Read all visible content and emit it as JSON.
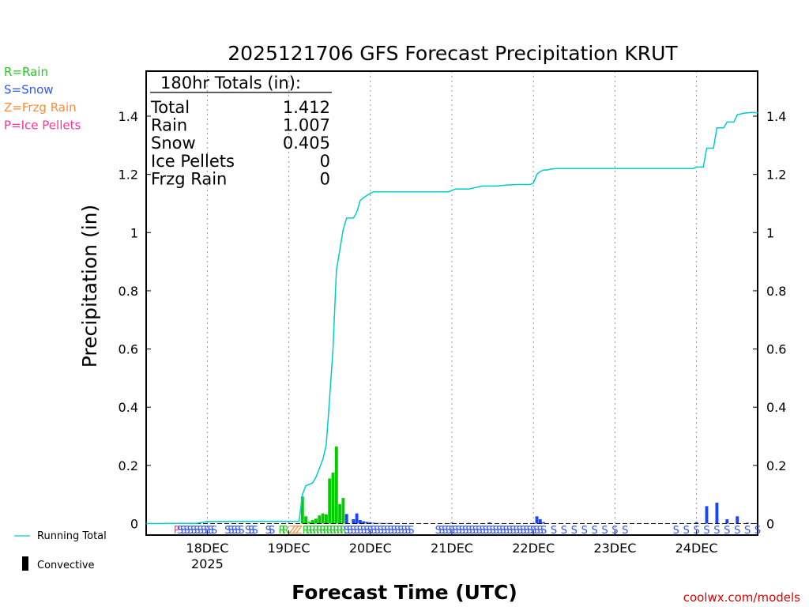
{
  "chart_data": {
    "type": "bar",
    "title": "2025121706 GFS Forecast Precipitation KRUT",
    "ylabel": "Precipitation (in)",
    "xlabel": "Forecast Time (UTC)",
    "credit": "coolwx.com/models",
    "ylim": [
      -0.04,
      1.56
    ],
    "yticks": [
      0,
      0.2,
      0.4,
      0.6,
      0.8,
      1,
      1.2,
      1.4
    ],
    "ytick_labels": [
      "0",
      "0.2",
      "0.4",
      "0.6",
      "0.8",
      "1",
      "1.2",
      "1.4"
    ],
    "xlim_hours": [
      0,
      180
    ],
    "xticks": [
      {
        "hour": 18,
        "label": "18DEC",
        "sublabel": "2025"
      },
      {
        "hour": 42,
        "label": "19DEC",
        "sublabel": ""
      },
      {
        "hour": 66,
        "label": "20DEC",
        "sublabel": ""
      },
      {
        "hour": 90,
        "label": "21DEC",
        "sublabel": ""
      },
      {
        "hour": 114,
        "label": "22DEC",
        "sublabel": ""
      },
      {
        "hour": 138,
        "label": "23DEC",
        "sublabel": ""
      },
      {
        "hour": 162,
        "label": "24DEC",
        "sublabel": ""
      }
    ],
    "legend_types": [
      {
        "label": "R=Rain",
        "color": "#22cc22"
      },
      {
        "label": "S=Snow",
        "color": "#3355ff"
      },
      {
        "label": "Z=Frzg Rain",
        "color": "#ff8c33"
      },
      {
        "label": "P=Ice Pellets",
        "color": "#ff3399"
      }
    ],
    "legend_series": [
      {
        "label": "Running Total",
        "color": "#00cccc"
      },
      {
        "label": "Convective",
        "color": "#000000"
      }
    ],
    "totals": {
      "heading": "180hr Totals (in):",
      "rows": [
        {
          "label": "Total",
          "value": "1.412"
        },
        {
          "label": "Rain",
          "value": "1.007"
        },
        {
          "label": "Snow",
          "value": "0.405"
        },
        {
          "label": "Ice Pellets",
          "value": "0"
        },
        {
          "label": "Frzg Rain",
          "value": "0"
        }
      ]
    },
    "series": [
      {
        "name": "Running Total",
        "color": "#00cccc",
        "points": [
          [
            0,
            0
          ],
          [
            15,
            0.001
          ],
          [
            18,
            0.007
          ],
          [
            30,
            0.008
          ],
          [
            42,
            0.008
          ],
          [
            45,
            0.008
          ],
          [
            46,
            0.1
          ],
          [
            47,
            0.13
          ],
          [
            48,
            0.135
          ],
          [
            49,
            0.14
          ],
          [
            50,
            0.16
          ],
          [
            51,
            0.19
          ],
          [
            52,
            0.22
          ],
          [
            53,
            0.27
          ],
          [
            54,
            0.43
          ],
          [
            55,
            0.6
          ],
          [
            56,
            0.87
          ],
          [
            57,
            0.94
          ],
          [
            58,
            1.01
          ],
          [
            59,
            1.05
          ],
          [
            61,
            1.05
          ],
          [
            62,
            1.07
          ],
          [
            63,
            1.11
          ],
          [
            64,
            1.12
          ],
          [
            66,
            1.135
          ],
          [
            67,
            1.14
          ],
          [
            70,
            1.14
          ],
          [
            80,
            1.14
          ],
          [
            87,
            1.14
          ],
          [
            89,
            1.14
          ],
          [
            90,
            1.145
          ],
          [
            91,
            1.15
          ],
          [
            95,
            1.15
          ],
          [
            97,
            1.155
          ],
          [
            99,
            1.16
          ],
          [
            103,
            1.16
          ],
          [
            106,
            1.163
          ],
          [
            109,
            1.165
          ],
          [
            113,
            1.165
          ],
          [
            114,
            1.17
          ],
          [
            115,
            1.2
          ],
          [
            116,
            1.21
          ],
          [
            117,
            1.215
          ],
          [
            118,
            1.215
          ],
          [
            119,
            1.218
          ],
          [
            121,
            1.22
          ],
          [
            130,
            1.22
          ],
          [
            150,
            1.22
          ],
          [
            161,
            1.22
          ],
          [
            162,
            1.225
          ],
          [
            164,
            1.225
          ],
          [
            165,
            1.29
          ],
          [
            167,
            1.29
          ],
          [
            168,
            1.36
          ],
          [
            170,
            1.36
          ],
          [
            171,
            1.38
          ],
          [
            173,
            1.38
          ],
          [
            174,
            1.405
          ],
          [
            176,
            1.41
          ],
          [
            178,
            1.413
          ],
          [
            180,
            1.412
          ]
        ]
      },
      {
        "name": "Rain",
        "color": "#00cc00",
        "bars": [
          [
            46,
            0.093
          ],
          [
            47,
            0.025
          ],
          [
            48,
            0.006
          ],
          [
            49,
            0.012
          ],
          [
            50,
            0.017
          ],
          [
            51,
            0.028
          ],
          [
            52,
            0.035
          ],
          [
            53,
            0.032
          ],
          [
            54,
            0.155
          ],
          [
            55,
            0.175
          ],
          [
            56,
            0.265
          ],
          [
            57,
            0.067
          ],
          [
            58,
            0.088
          ]
        ]
      },
      {
        "name": "Snow",
        "color": "#1a44ff",
        "bars": [
          [
            59,
            0.033
          ],
          [
            61,
            0.015
          ],
          [
            62,
            0.035
          ],
          [
            63,
            0.012
          ],
          [
            64,
            0.008
          ],
          [
            65,
            0.006
          ],
          [
            66,
            0.004
          ],
          [
            67,
            0.003
          ],
          [
            68,
            0.002
          ],
          [
            69,
            0.002
          ],
          [
            70,
            0.002
          ],
          [
            71,
            0.002
          ],
          [
            72,
            0.002
          ],
          [
            90,
            0.003
          ],
          [
            95,
            0.002
          ],
          [
            101,
            0.004
          ],
          [
            115,
            0.025
          ],
          [
            116,
            0.015
          ],
          [
            117,
            0.005
          ],
          [
            162,
            0.005
          ],
          [
            165,
            0.06
          ],
          [
            168,
            0.072
          ],
          [
            171,
            0.015
          ],
          [
            174,
            0.025
          ],
          [
            177,
            0.003
          ]
        ]
      }
    ],
    "ptype_marks": [
      {
        "symbol": "P",
        "color": "#ff3399",
        "hours": [
          9
        ]
      },
      {
        "symbol": "S",
        "color": "#3355ff",
        "hours": [
          10,
          11,
          12,
          13,
          14,
          15,
          16,
          17,
          18,
          19,
          20,
          24,
          25,
          26,
          27,
          28,
          30,
          31,
          32,
          36,
          37
        ]
      },
      {
        "symbol": "R",
        "color": "#22cc22",
        "hours": [
          40,
          41,
          47,
          48,
          49,
          50,
          51,
          52,
          53,
          54,
          55,
          56,
          57,
          58
        ]
      },
      {
        "symbol": "Z",
        "color": "#ff8c33",
        "hours": [
          43,
          44,
          45
        ]
      },
      {
        "symbol": "S",
        "color": "#3355ff",
        "hours": [
          59,
          60,
          61,
          62,
          63,
          64,
          65,
          66,
          67,
          68,
          69,
          70,
          71,
          72,
          73,
          74,
          75,
          76,
          77,
          78,
          86,
          87,
          88,
          89,
          90,
          91,
          92,
          93,
          94,
          95,
          96,
          97,
          98,
          99,
          100,
          101,
          102,
          103,
          104,
          105,
          106,
          107,
          108,
          109,
          110,
          111,
          112,
          113,
          114,
          115,
          116,
          117,
          120,
          123,
          126,
          129,
          132,
          135,
          138,
          141,
          156,
          159,
          162,
          165,
          168,
          171,
          174,
          177,
          180
        ]
      }
    ]
  }
}
